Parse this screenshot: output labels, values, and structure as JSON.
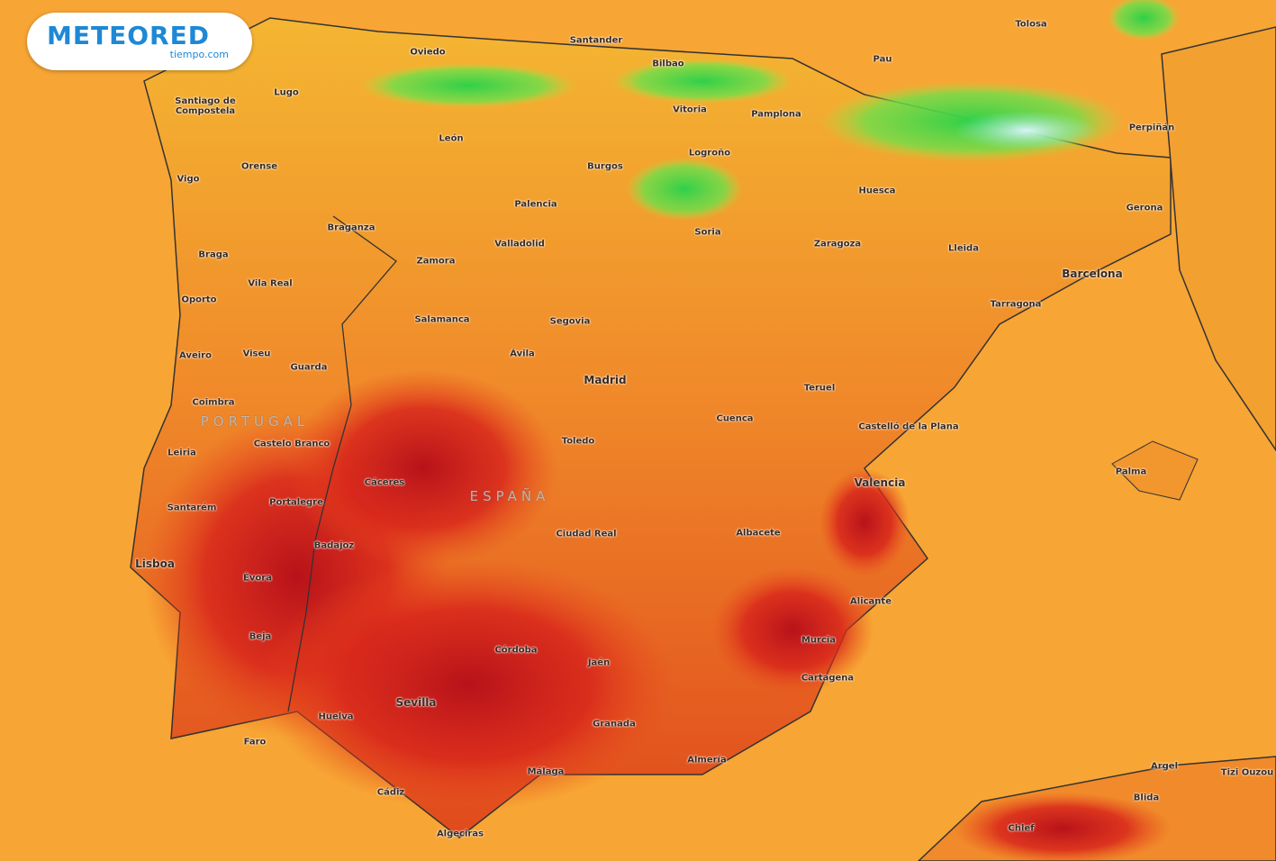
{
  "logo": {
    "brand": "METEORED",
    "site": "tiempo.com"
  },
  "map": {
    "countries": [
      "PORTUGAL",
      "ESPAÑA"
    ],
    "cities": [
      "Oviedo",
      "Santander",
      "Bilbao",
      "Tolosa",
      "Pau",
      "Lugo",
      "Santiago de Compostela",
      "Vitoria",
      "Pamplona",
      "León",
      "Perpiñán",
      "Orense",
      "Burgos",
      "Logroño",
      "Vigo",
      "Huesca",
      "Palencia",
      "Gerona",
      "Braganza",
      "Soria",
      "Valladolid",
      "Zaragoza",
      "Lleida",
      "Zamora",
      "Braga",
      "Barcelona",
      "Vila Real",
      "Oporto",
      "Tarragona",
      "Salamanca",
      "Segovia",
      "Aveiro",
      "Viseu",
      "Ávila",
      "Guarda",
      "Madrid",
      "Teruel",
      "Coimbra",
      "Cuenca",
      "Castelló de la Plana",
      "Castelo Branco",
      "Leiria",
      "Toledo",
      "Palma",
      "Cáceres",
      "Valencia",
      "Portalegre",
      "Santarém",
      "Ciudad Real",
      "Albacete",
      "Badajoz",
      "Lisboa",
      "Évora",
      "Alicante",
      "Beja",
      "Murcia",
      "Córdoba",
      "Jaén",
      "Cartagena",
      "Sevilla",
      "Huelva",
      "Granada",
      "Faro",
      "Almería",
      "Málaga",
      "Argel",
      "Tizi Ouzou",
      "Blida",
      "Cádiz",
      "Chlef",
      "Algeciras"
    ]
  }
}
